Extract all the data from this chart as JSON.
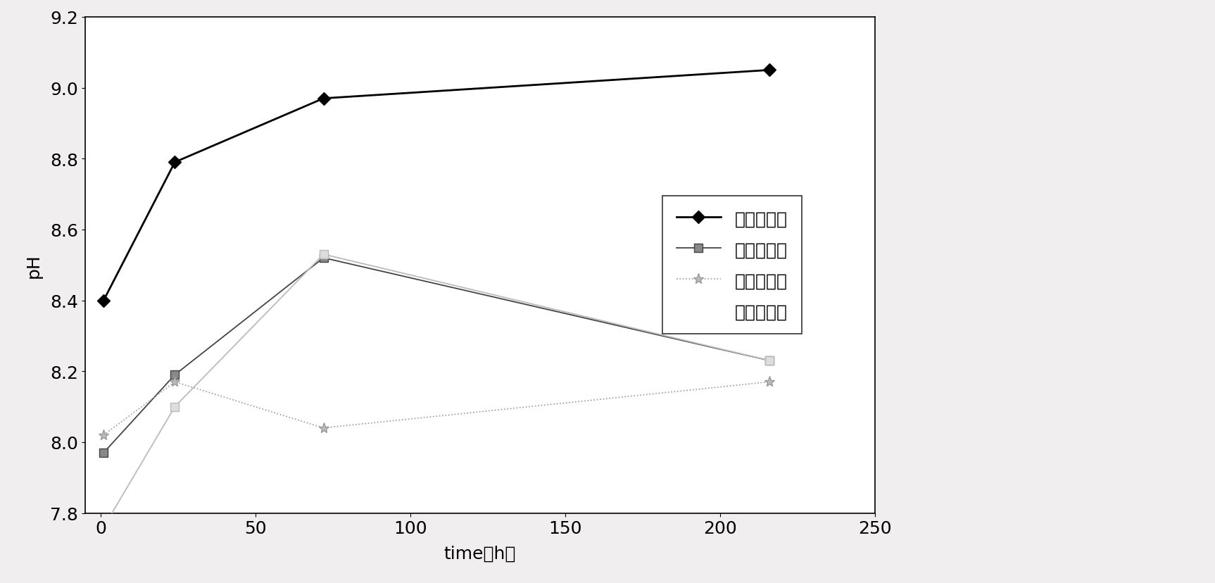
{
  "series": [
    {
      "label": "实施实例一",
      "x": [
        1,
        24,
        72,
        216
      ],
      "y": [
        8.4,
        8.79,
        8.97,
        9.05
      ],
      "color": "#000000",
      "marker": "D",
      "markersize": 9,
      "linestyle": "-",
      "linewidth": 2.0,
      "markerfacecolor": "#000000",
      "markeredgecolor": "#000000"
    },
    {
      "label": "实施实例二",
      "x": [
        1,
        24,
        72,
        216
      ],
      "y": [
        7.97,
        8.19,
        8.52,
        8.23
      ],
      "color": "#444444",
      "marker": "s",
      "markersize": 9,
      "linestyle": "-",
      "linewidth": 1.3,
      "markerfacecolor": "#888888",
      "markeredgecolor": "#444444"
    },
    {
      "label": "实施实例三",
      "x": [
        1,
        24,
        72,
        216
      ],
      "y": [
        8.02,
        8.17,
        8.04,
        8.17
      ],
      "color": "#999999",
      "marker": "*",
      "markersize": 11,
      "linestyle": ":",
      "linewidth": 1.2,
      "markerfacecolor": "#bbbbbb",
      "markeredgecolor": "#999999"
    },
    {
      "label": "实施实例四",
      "x": [
        1,
        24,
        72,
        216
      ],
      "y": [
        7.76,
        8.1,
        8.53,
        8.23
      ],
      "color": "#bbbbbb",
      "marker": "s",
      "markersize": 9,
      "linestyle": "-",
      "linewidth": 1.3,
      "markerfacecolor": "#dddddd",
      "markeredgecolor": "#bbbbbb",
      "legend_line": false
    }
  ],
  "xlabel": "time（h）",
  "ylabel": "pH",
  "xlim": [
    -5,
    245
  ],
  "ylim": [
    7.8,
    9.2
  ],
  "yticks": [
    7.8,
    8.0,
    8.2,
    8.4,
    8.6,
    8.8,
    9.0,
    9.2
  ],
  "xticks": [
    0,
    50,
    100,
    150,
    200,
    250
  ],
  "background_color": "#f0eeee",
  "plot_background": "#ffffff",
  "font_size": 18,
  "label_font_size": 18
}
